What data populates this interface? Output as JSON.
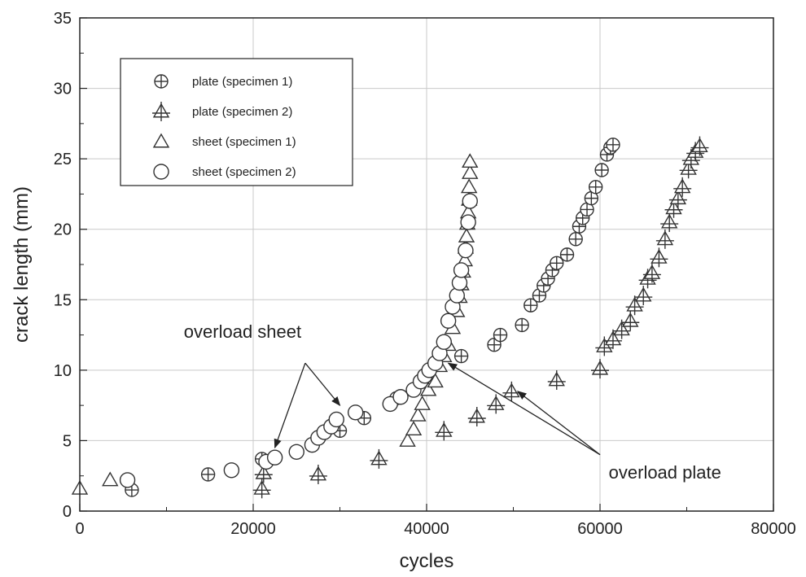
{
  "chart_data": {
    "type": "scatter",
    "title": "",
    "xlabel": "cycles",
    "ylabel": "crack length (mm)",
    "xlim": [
      0,
      80000
    ],
    "ylim": [
      0,
      35
    ],
    "xticks": [
      0,
      20000,
      40000,
      60000,
      80000
    ],
    "yticks": [
      0,
      5,
      10,
      15,
      20,
      25,
      30,
      35
    ],
    "grid": true,
    "legend_position": "top-left",
    "series": [
      {
        "name": "plate (specimen 1)",
        "marker": "circle-plus",
        "points": [
          [
            6000,
            1.5
          ],
          [
            14800,
            2.6
          ],
          [
            21000,
            3.7
          ],
          [
            30000,
            5.7
          ],
          [
            32800,
            6.6
          ],
          [
            36500,
            8.0
          ],
          [
            44000,
            11.0
          ],
          [
            47800,
            11.8
          ],
          [
            48500,
            12.5
          ],
          [
            51000,
            13.2
          ],
          [
            52000,
            14.6
          ],
          [
            53000,
            15.3
          ],
          [
            53500,
            16.0
          ],
          [
            54000,
            16.5
          ],
          [
            54500,
            17.1
          ],
          [
            55000,
            17.6
          ],
          [
            56200,
            18.2
          ],
          [
            57200,
            19.3
          ],
          [
            57600,
            20.2
          ],
          [
            58000,
            20.8
          ],
          [
            58500,
            21.4
          ],
          [
            59000,
            22.2
          ],
          [
            59500,
            23.0
          ],
          [
            60200,
            24.2
          ],
          [
            60800,
            25.3
          ],
          [
            61200,
            25.8
          ],
          [
            61500,
            26.0
          ]
        ]
      },
      {
        "name": "plate (specimen 2)",
        "marker": "triangle-plus",
        "points": [
          [
            21000,
            1.6
          ],
          [
            21200,
            2.7
          ],
          [
            27500,
            2.6
          ],
          [
            34500,
            3.7
          ],
          [
            42000,
            5.7
          ],
          [
            45800,
            6.7
          ],
          [
            48000,
            7.6
          ],
          [
            49800,
            8.5
          ],
          [
            55000,
            9.3
          ],
          [
            60000,
            10.1
          ],
          [
            60500,
            11.7
          ],
          [
            61500,
            12.2
          ],
          [
            62500,
            12.9
          ],
          [
            63500,
            13.5
          ],
          [
            64000,
            14.6
          ],
          [
            65000,
            15.3
          ],
          [
            65500,
            16.5
          ],
          [
            66000,
            16.9
          ],
          [
            66800,
            18.0
          ],
          [
            67500,
            19.3
          ],
          [
            68000,
            20.5
          ],
          [
            68500,
            21.5
          ],
          [
            69000,
            22.2
          ],
          [
            69500,
            23.0
          ],
          [
            70200,
            24.3
          ],
          [
            70500,
            25.0
          ],
          [
            71000,
            25.5
          ],
          [
            71500,
            25.9
          ]
        ]
      },
      {
        "name": "sheet (specimen 1)",
        "marker": "triangle",
        "points": [
          [
            0,
            1.6
          ],
          [
            3500,
            2.2
          ],
          [
            37800,
            5.0
          ],
          [
            38500,
            5.8
          ],
          [
            39000,
            6.8
          ],
          [
            39500,
            7.6
          ],
          [
            40200,
            8.6
          ],
          [
            41000,
            9.2
          ],
          [
            41500,
            10.3
          ],
          [
            42000,
            11.0
          ],
          [
            42500,
            11.8
          ],
          [
            43000,
            13.0
          ],
          [
            43500,
            14.2
          ],
          [
            43800,
            15.2
          ],
          [
            44000,
            16.1
          ],
          [
            44200,
            17.0
          ],
          [
            44400,
            17.8
          ],
          [
            44500,
            18.7
          ],
          [
            44600,
            19.5
          ],
          [
            44700,
            20.4
          ],
          [
            44800,
            21.2
          ],
          [
            44900,
            22.1
          ],
          [
            44900,
            23.0
          ],
          [
            45000,
            24.0
          ],
          [
            45000,
            24.8
          ]
        ]
      },
      {
        "name": "sheet (specimen 2)",
        "marker": "circle",
        "points": [
          [
            5500,
            2.2
          ],
          [
            17500,
            2.9
          ],
          [
            21500,
            3.5
          ],
          [
            22500,
            3.8
          ],
          [
            25000,
            4.2
          ],
          [
            26800,
            4.7
          ],
          [
            27500,
            5.2
          ],
          [
            28200,
            5.6
          ],
          [
            29000,
            6.0
          ],
          [
            29600,
            6.5
          ],
          [
            31800,
            7.0
          ],
          [
            35800,
            7.6
          ],
          [
            37000,
            8.1
          ],
          [
            38500,
            8.6
          ],
          [
            39300,
            9.2
          ],
          [
            39800,
            9.6
          ],
          [
            40300,
            10.0
          ],
          [
            41000,
            10.5
          ],
          [
            41500,
            11.2
          ],
          [
            42000,
            12.0
          ],
          [
            42500,
            13.5
          ],
          [
            43000,
            14.5
          ],
          [
            43500,
            15.3
          ],
          [
            43800,
            16.2
          ],
          [
            44000,
            17.1
          ],
          [
            44500,
            18.5
          ],
          [
            44800,
            20.5
          ],
          [
            45000,
            22.0
          ]
        ]
      }
    ],
    "annotations": [
      {
        "text": "overload sheet",
        "text_at": [
          12000,
          12.3
        ],
        "arrow_tail": [
          26000,
          10.5
        ],
        "arrow_targets": [
          [
            22500,
            4.5
          ],
          [
            30000,
            7.5
          ]
        ]
      },
      {
        "text": "overload plate",
        "text_at": [
          61000,
          2.3
        ],
        "arrow_tail": [
          60000,
          4.0
        ],
        "arrow_targets": [
          [
            42500,
            10.5
          ],
          [
            50500,
            8.5
          ]
        ]
      }
    ]
  }
}
